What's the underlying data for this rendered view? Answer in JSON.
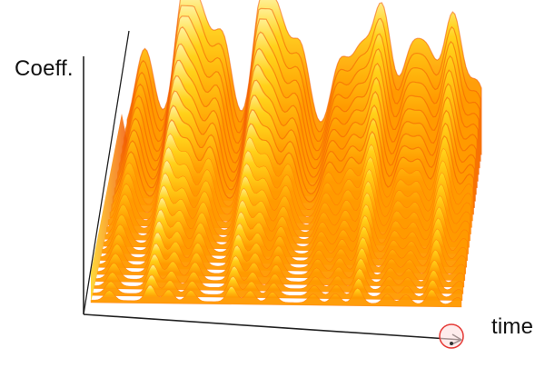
{
  "chart_data": {
    "type": "area",
    "title": "",
    "xlabel": "time",
    "ylabel": "Coeff.",
    "grid": false,
    "legend": "none",
    "series_count": 24,
    "peaks": [
      {
        "t": 0.05,
        "height": 0.62
      },
      {
        "t": 0.16,
        "height": 0.99
      },
      {
        "t": 0.21,
        "height": 0.72
      },
      {
        "t": 0.27,
        "height": 0.7
      },
      {
        "t": 0.38,
        "height": 0.97
      },
      {
        "t": 0.43,
        "height": 0.72
      },
      {
        "t": 0.49,
        "height": 0.65
      },
      {
        "t": 0.6,
        "height": 0.55
      },
      {
        "t": 0.66,
        "height": 0.6
      },
      {
        "t": 0.72,
        "height": 0.95
      },
      {
        "t": 0.8,
        "height": 0.6
      },
      {
        "t": 0.85,
        "height": 0.58
      },
      {
        "t": 0.92,
        "height": 0.93
      },
      {
        "t": 0.99,
        "height": 0.45
      }
    ],
    "colors": {
      "low": "#ffd21a",
      "mid": "#ff9a00",
      "high": "#f25a05",
      "ridge": "#ff6a08",
      "axis": "#222222",
      "marker": "#e53935"
    },
    "marker": "cursor-click-indicator"
  }
}
